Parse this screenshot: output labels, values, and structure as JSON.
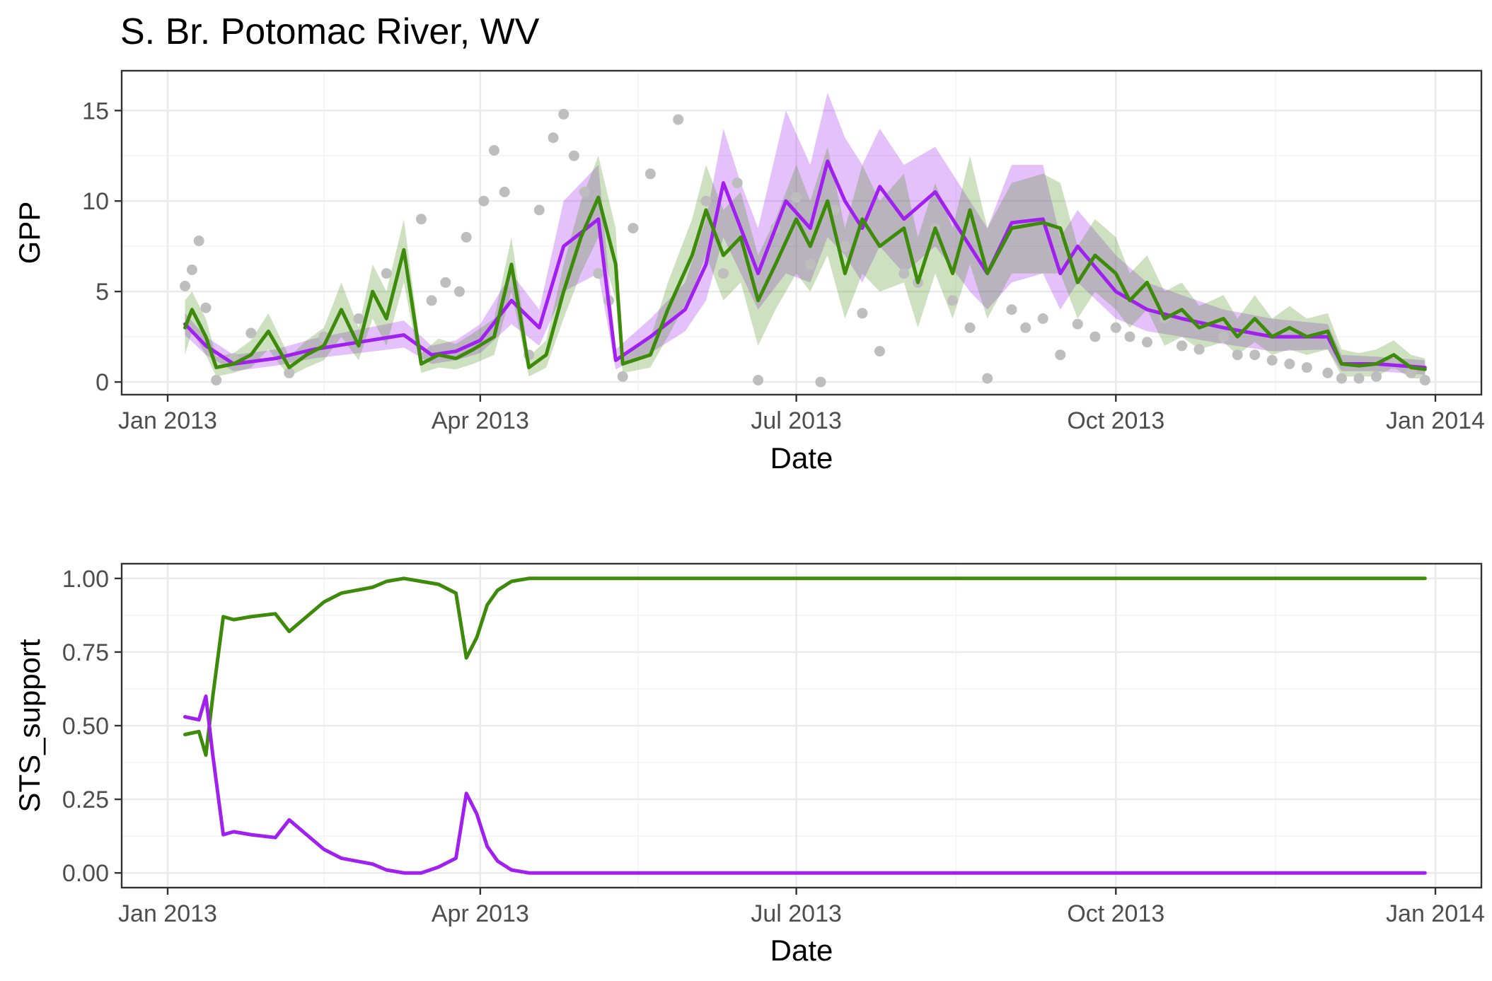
{
  "title": "S. Br. Potomac River, WV",
  "colors": {
    "purple": "#a020f0",
    "green": "#3e8a0a",
    "points": "#bebebe"
  },
  "chart_data": [
    {
      "type": "line",
      "panel": "top",
      "xlabel": "Date",
      "ylabel": "GPP",
      "xlim": [
        "2013-01-01",
        "2014-01-01"
      ],
      "ylim": [
        -0.7,
        17.2
      ],
      "x_ticks": [
        "2013-01-01",
        "2013-04-01",
        "2013-07-01",
        "2013-10-01",
        "2014-01-01"
      ],
      "x_tick_labels": [
        "Jan 2013",
        "Apr 2013",
        "Jul 2013",
        "Oct 2013",
        "Jan 2014"
      ],
      "y_ticks": [
        0,
        5,
        10,
        15
      ],
      "y_tick_labels": [
        "0",
        "5",
        "10",
        "15"
      ],
      "grid": true,
      "points": {
        "x": [
          "2013-01-06",
          "2013-01-08",
          "2013-01-10",
          "2013-01-12",
          "2013-01-15",
          "2013-01-20",
          "2013-01-25",
          "2013-02-05",
          "2013-02-15",
          "2013-02-25",
          "2013-03-05",
          "2013-03-15",
          "2013-03-18",
          "2013-03-22",
          "2013-03-26",
          "2013-03-28",
          "2013-04-02",
          "2013-04-05",
          "2013-04-08",
          "2013-04-10",
          "2013-04-15",
          "2013-04-18",
          "2013-04-22",
          "2013-04-25",
          "2013-04-28",
          "2013-05-01",
          "2013-05-05",
          "2013-05-08",
          "2013-05-12",
          "2013-05-15",
          "2013-05-20",
          "2013-05-28",
          "2013-06-05",
          "2013-06-10",
          "2013-06-14",
          "2013-06-20",
          "2013-06-25",
          "2013-07-01",
          "2013-07-05",
          "2013-07-08",
          "2013-07-12",
          "2013-07-15",
          "2013-07-20",
          "2013-07-25",
          "2013-08-01",
          "2013-08-05",
          "2013-08-10",
          "2013-08-15",
          "2013-08-20",
          "2013-08-25",
          "2013-09-01",
          "2013-09-05",
          "2013-09-10",
          "2013-09-15",
          "2013-09-20",
          "2013-09-25",
          "2013-10-01",
          "2013-10-05",
          "2013-10-10",
          "2013-10-15",
          "2013-10-20",
          "2013-10-25",
          "2013-11-01",
          "2013-11-05",
          "2013-11-10",
          "2013-11-15",
          "2013-11-20",
          "2013-11-25",
          "2013-12-01",
          "2013-12-05",
          "2013-12-10",
          "2013-12-15",
          "2013-12-20",
          "2013-12-25",
          "2013-12-29"
        ],
        "y": [
          5.3,
          6.2,
          7.8,
          4.1,
          0.1,
          1.3,
          2.7,
          0.5,
          2.5,
          3.5,
          6.0,
          9.0,
          4.5,
          5.5,
          5.0,
          8.0,
          10.0,
          12.8,
          10.5,
          5.5,
          1.5,
          9.5,
          13.5,
          14.8,
          12.5,
          10.5,
          6.0,
          4.5,
          0.3,
          8.5,
          11.5,
          14.5,
          10.0,
          6.0,
          11.0,
          0.1,
          8.5,
          10.2,
          6.5,
          0.0,
          9.5,
          7.5,
          3.8,
          1.7,
          6.0,
          5.5,
          8.5,
          4.5,
          3.0,
          0.2,
          4.0,
          3.0,
          3.5,
          1.5,
          3.2,
          2.5,
          3.0,
          2.5,
          2.2,
          3.5,
          2.0,
          1.8,
          2.5,
          1.5,
          1.5,
          1.2,
          1.0,
          0.8,
          0.5,
          0.2,
          0.2,
          0.3,
          1.0,
          0.5,
          0.1
        ]
      },
      "series": [
        {
          "color": "purple",
          "x": [
            "2013-01-06",
            "2013-01-12",
            "2013-01-20",
            "2013-02-01",
            "2013-02-12",
            "2013-02-25",
            "2013-03-10",
            "2013-03-18",
            "2013-03-25",
            "2013-04-01",
            "2013-04-10",
            "2013-04-18",
            "2013-04-25",
            "2013-05-05",
            "2013-05-10",
            "2013-05-20",
            "2013-05-30",
            "2013-06-05",
            "2013-06-10",
            "2013-06-15",
            "2013-06-20",
            "2013-06-28",
            "2013-07-05",
            "2013-07-10",
            "2013-07-15",
            "2013-07-20",
            "2013-07-25",
            "2013-08-01",
            "2013-08-10",
            "2013-08-20",
            "2013-08-25",
            "2013-09-01",
            "2013-09-10",
            "2013-09-15",
            "2013-09-20",
            "2013-10-01",
            "2013-10-10",
            "2013-10-20",
            "2013-11-01",
            "2013-11-15",
            "2013-12-01",
            "2013-12-05",
            "2013-12-15",
            "2013-12-29"
          ],
          "y": [
            3.2,
            2.0,
            1.0,
            1.3,
            1.8,
            2.2,
            2.6,
            1.5,
            1.7,
            2.3,
            4.5,
            3.0,
            7.5,
            9.0,
            1.2,
            2.5,
            4.0,
            6.5,
            11.0,
            8.5,
            6.0,
            10.0,
            8.5,
            12.2,
            10.0,
            8.5,
            10.8,
            9.0,
            10.5,
            7.5,
            6.0,
            8.8,
            9.0,
            6.0,
            7.5,
            5.0,
            4.0,
            3.5,
            3.0,
            2.5,
            2.5,
            1.0,
            1.0,
            0.8
          ],
          "band_upper": [
            3.8,
            2.5,
            1.5,
            1.8,
            2.4,
            2.9,
            3.4,
            2.0,
            2.3,
            3.2,
            6.0,
            4.0,
            10.0,
            12.0,
            1.8,
            3.5,
            5.5,
            9.0,
            14.0,
            11.0,
            8.5,
            15.0,
            12.0,
            16.0,
            13.5,
            12.0,
            14.0,
            12.0,
            13.0,
            10.0,
            8.5,
            12.0,
            12.0,
            8.0,
            9.5,
            7.0,
            5.5,
            4.8,
            4.0,
            3.5,
            3.2,
            1.5,
            1.4,
            1.2
          ],
          "band_lower": [
            2.6,
            1.5,
            0.6,
            0.9,
            1.3,
            1.6,
            1.9,
            1.0,
            1.2,
            1.6,
            3.2,
            2.0,
            5.0,
            6.0,
            0.7,
            1.6,
            2.8,
            4.5,
            8.0,
            6.0,
            4.0,
            6.0,
            5.5,
            8.0,
            7.0,
            5.5,
            7.5,
            6.0,
            7.5,
            5.0,
            4.0,
            5.5,
            6.0,
            4.0,
            5.5,
            3.5,
            2.8,
            2.5,
            2.1,
            1.7,
            1.8,
            0.6,
            0.6,
            0.4
          ]
        },
        {
          "color": "green",
          "x": [
            "2013-01-06",
            "2013-01-08",
            "2013-01-12",
            "2013-01-15",
            "2013-01-20",
            "2013-01-25",
            "2013-01-30",
            "2013-02-05",
            "2013-02-10",
            "2013-02-15",
            "2013-02-20",
            "2013-02-25",
            "2013-03-01",
            "2013-03-05",
            "2013-03-10",
            "2013-03-15",
            "2013-03-20",
            "2013-03-25",
            "2013-03-30",
            "2013-04-05",
            "2013-04-10",
            "2013-04-15",
            "2013-04-20",
            "2013-04-25",
            "2013-04-30",
            "2013-05-05",
            "2013-05-10",
            "2013-05-12",
            "2013-05-20",
            "2013-05-25",
            "2013-06-01",
            "2013-06-05",
            "2013-06-10",
            "2013-06-15",
            "2013-06-20",
            "2013-06-25",
            "2013-07-01",
            "2013-07-05",
            "2013-07-10",
            "2013-07-15",
            "2013-07-20",
            "2013-07-25",
            "2013-08-01",
            "2013-08-05",
            "2013-08-10",
            "2013-08-15",
            "2013-08-20",
            "2013-08-25",
            "2013-09-01",
            "2013-09-10",
            "2013-09-15",
            "2013-09-20",
            "2013-09-25",
            "2013-10-01",
            "2013-10-05",
            "2013-10-10",
            "2013-10-15",
            "2013-10-20",
            "2013-10-25",
            "2013-11-01",
            "2013-11-05",
            "2013-11-10",
            "2013-11-15",
            "2013-11-20",
            "2013-11-25",
            "2013-12-01",
            "2013-12-05",
            "2013-12-10",
            "2013-12-15",
            "2013-12-20",
            "2013-12-25",
            "2013-12-29"
          ],
          "y": [
            3.0,
            4.0,
            2.5,
            0.8,
            1.0,
            1.5,
            2.8,
            0.8,
            1.5,
            2.0,
            4.0,
            2.0,
            5.0,
            3.5,
            7.3,
            1.0,
            1.5,
            1.3,
            1.8,
            2.5,
            6.5,
            0.8,
            1.5,
            5.0,
            8.0,
            10.2,
            6.5,
            1.0,
            1.5,
            4.0,
            7.0,
            9.5,
            7.0,
            8.0,
            4.5,
            6.5,
            9.0,
            7.5,
            10.0,
            6.0,
            9.0,
            7.5,
            8.5,
            5.5,
            8.5,
            6.0,
            9.5,
            6.0,
            8.5,
            8.8,
            8.5,
            5.5,
            7.0,
            6.0,
            4.5,
            5.5,
            3.5,
            4.0,
            3.0,
            3.5,
            2.5,
            3.5,
            2.5,
            3.0,
            2.5,
            2.8,
            1.0,
            0.9,
            1.0,
            1.5,
            0.8,
            0.7
          ],
          "band_upper": [
            4.5,
            5.0,
            3.5,
            1.4,
            1.6,
            2.3,
            3.8,
            1.4,
            2.3,
            3.0,
            5.5,
            3.0,
            6.5,
            5.0,
            9.0,
            1.6,
            2.4,
            2.1,
            2.7,
            3.5,
            8.0,
            1.4,
            2.3,
            6.5,
            10.0,
            12.5,
            8.5,
            1.6,
            2.4,
            5.5,
            9.0,
            12.0,
            9.5,
            10.5,
            7.0,
            9.0,
            12.0,
            10.0,
            13.0,
            8.5,
            12.0,
            10.0,
            11.5,
            8.0,
            11.0,
            8.5,
            12.5,
            8.5,
            11.0,
            11.5,
            11.0,
            7.5,
            9.0,
            8.0,
            6.0,
            7.0,
            5.0,
            5.5,
            4.2,
            4.8,
            3.5,
            4.8,
            3.5,
            4.2,
            3.5,
            3.8,
            1.8,
            1.6,
            1.8,
            2.3,
            1.5,
            1.3
          ],
          "band_lower": [
            1.5,
            2.8,
            1.5,
            0.3,
            0.5,
            0.8,
            1.8,
            0.3,
            0.8,
            1.2,
            2.5,
            1.2,
            3.5,
            2.0,
            5.5,
            0.5,
            0.8,
            0.7,
            1.0,
            1.5,
            5.0,
            0.3,
            0.8,
            3.5,
            6.0,
            8.0,
            4.5,
            0.5,
            0.8,
            2.5,
            5.0,
            7.0,
            4.5,
            5.5,
            2.0,
            4.0,
            6.0,
            5.0,
            7.0,
            3.5,
            6.0,
            5.0,
            5.5,
            3.0,
            6.0,
            3.5,
            6.5,
            3.5,
            6.0,
            6.0,
            6.0,
            3.5,
            5.0,
            4.0,
            3.0,
            4.0,
            2.0,
            2.5,
            1.8,
            2.2,
            1.5,
            2.2,
            1.5,
            1.8,
            1.5,
            1.8,
            0.3,
            0.3,
            0.3,
            0.8,
            0.2,
            0.2
          ]
        }
      ]
    },
    {
      "type": "line",
      "panel": "bottom",
      "xlabel": "Date",
      "ylabel": "STS_support",
      "xlim": [
        "2013-01-01",
        "2014-01-01"
      ],
      "ylim": [
        -0.05,
        1.05
      ],
      "x_ticks": [
        "2013-01-01",
        "2013-04-01",
        "2013-07-01",
        "2013-10-01",
        "2014-01-01"
      ],
      "x_tick_labels": [
        "Jan 2013",
        "Apr 2013",
        "Jul 2013",
        "Oct 2013",
        "Jan 2014"
      ],
      "y_ticks": [
        0,
        0.25,
        0.5,
        0.75,
        1.0
      ],
      "y_tick_labels": [
        "0.00",
        "0.25",
        "0.50",
        "0.75",
        "1.00"
      ],
      "grid": true,
      "series": [
        {
          "color": "green",
          "x": [
            "2013-01-06",
            "2013-01-10",
            "2013-01-12",
            "2013-01-14",
            "2013-01-17",
            "2013-01-20",
            "2013-01-25",
            "2013-02-01",
            "2013-02-05",
            "2013-02-10",
            "2013-02-15",
            "2013-02-20",
            "2013-03-01",
            "2013-03-05",
            "2013-03-10",
            "2013-03-15",
            "2013-03-20",
            "2013-03-25",
            "2013-03-28",
            "2013-03-31",
            "2013-04-03",
            "2013-04-06",
            "2013-04-10",
            "2013-04-15",
            "2013-05-01",
            "2013-06-01",
            "2013-07-01",
            "2013-10-01",
            "2013-12-29"
          ],
          "y": [
            0.47,
            0.48,
            0.4,
            0.6,
            0.87,
            0.86,
            0.87,
            0.88,
            0.82,
            0.87,
            0.92,
            0.95,
            0.97,
            0.99,
            1.0,
            0.99,
            0.98,
            0.95,
            0.73,
            0.8,
            0.91,
            0.96,
            0.99,
            1.0,
            1.0,
            1.0,
            1.0,
            1.0,
            1.0
          ]
        },
        {
          "color": "purple",
          "x": [
            "2013-01-06",
            "2013-01-10",
            "2013-01-12",
            "2013-01-14",
            "2013-01-17",
            "2013-01-20",
            "2013-01-25",
            "2013-02-01",
            "2013-02-05",
            "2013-02-10",
            "2013-02-15",
            "2013-02-20",
            "2013-03-01",
            "2013-03-05",
            "2013-03-10",
            "2013-03-15",
            "2013-03-20",
            "2013-03-25",
            "2013-03-28",
            "2013-03-31",
            "2013-04-03",
            "2013-04-06",
            "2013-04-10",
            "2013-04-15",
            "2013-05-01",
            "2013-06-01",
            "2013-07-01",
            "2013-10-01",
            "2013-12-29"
          ],
          "y": [
            0.53,
            0.52,
            0.6,
            0.4,
            0.13,
            0.14,
            0.13,
            0.12,
            0.18,
            0.13,
            0.08,
            0.05,
            0.03,
            0.01,
            0.0,
            0.0,
            0.02,
            0.05,
            0.27,
            0.2,
            0.09,
            0.04,
            0.01,
            0.0,
            0.0,
            0.0,
            0.0,
            0.0,
            0.0
          ]
        }
      ]
    }
  ]
}
